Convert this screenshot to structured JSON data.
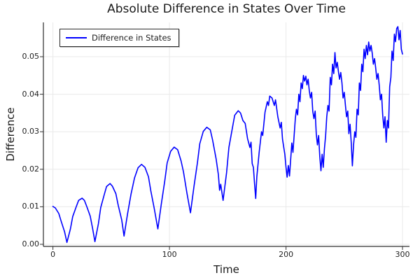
{
  "chart_data": {
    "type": "line",
    "title": "Absolute Difference in States Over Time",
    "xlabel": "Time",
    "ylabel": "Difference",
    "xlim": [
      -8.2,
      306
    ],
    "ylim": [
      -0.00056,
      0.05914
    ],
    "xticks": [
      0,
      100,
      200,
      300
    ],
    "xtick_labels": [
      "0",
      "100",
      "200",
      "300"
    ],
    "yticks": [
      0.0,
      0.01,
      0.02,
      0.03,
      0.04,
      0.05
    ],
    "ytick_labels": [
      "0.00",
      "0.01",
      "0.02",
      "0.03",
      "0.04",
      "0.05"
    ],
    "grid": true,
    "legend_position": "top-left",
    "series": [
      {
        "name": "Difference in States",
        "color": "#0000ff",
        "points": [
          [
            0,
            0.0101
          ],
          [
            2,
            0.0097
          ],
          [
            5,
            0.0082
          ],
          [
            7,
            0.0062
          ],
          [
            10,
            0.0033
          ],
          [
            12,
            0.0005
          ],
          [
            15,
            0.0041
          ],
          [
            17,
            0.0074
          ],
          [
            20,
            0.01
          ],
          [
            22,
            0.0117
          ],
          [
            25,
            0.0123
          ],
          [
            27,
            0.0117
          ],
          [
            29,
            0.0101
          ],
          [
            32,
            0.0075
          ],
          [
            34,
            0.0043
          ],
          [
            36,
            0.0007
          ],
          [
            39,
            0.0055
          ],
          [
            41,
            0.0098
          ],
          [
            44,
            0.0132
          ],
          [
            46,
            0.0154
          ],
          [
            49,
            0.0162
          ],
          [
            51,
            0.0155
          ],
          [
            54,
            0.0135
          ],
          [
            56,
            0.0104
          ],
          [
            59,
            0.0065
          ],
          [
            61,
            0.0022
          ],
          [
            64,
            0.0081
          ],
          [
            67,
            0.0134
          ],
          [
            70,
            0.0177
          ],
          [
            73,
            0.0204
          ],
          [
            76,
            0.0213
          ],
          [
            79,
            0.0205
          ],
          [
            82,
            0.018
          ],
          [
            84,
            0.0142
          ],
          [
            87,
            0.0094
          ],
          [
            90,
            0.0041
          ],
          [
            93,
            0.0108
          ],
          [
            96,
            0.0169
          ],
          [
            98,
            0.0217
          ],
          [
            101,
            0.0248
          ],
          [
            104,
            0.0259
          ],
          [
            107,
            0.0252
          ],
          [
            110,
            0.0222
          ],
          [
            112,
            0.0193
          ],
          [
            115,
            0.0136
          ],
          [
            118,
            0.0084
          ],
          [
            121,
            0.0154
          ],
          [
            124,
            0.0218
          ],
          [
            126,
            0.0268
          ],
          [
            129,
            0.0301
          ],
          [
            132,
            0.0312
          ],
          [
            135,
            0.0305
          ],
          [
            137,
            0.0278
          ],
          [
            140,
            0.0228
          ],
          [
            142,
            0.0185
          ],
          [
            143,
            0.0144
          ],
          [
            144,
            0.016
          ],
          [
            146,
            0.0117
          ],
          [
            149,
            0.0191
          ],
          [
            151,
            0.0258
          ],
          [
            154,
            0.031
          ],
          [
            156,
            0.0344
          ],
          [
            159,
            0.0356
          ],
          [
            161,
            0.035
          ],
          [
            163,
            0.033
          ],
          [
            165,
            0.0322
          ],
          [
            167,
            0.0282
          ],
          [
            169,
            0.0258
          ],
          [
            170,
            0.0272
          ],
          [
            171,
            0.0215
          ],
          [
            172,
            0.0205
          ],
          [
            173,
            0.0163
          ],
          [
            174,
            0.0122
          ],
          [
            175,
            0.018
          ],
          [
            177,
            0.0246
          ],
          [
            179,
            0.03
          ],
          [
            180,
            0.029
          ],
          [
            182,
            0.0352
          ],
          [
            184,
            0.038
          ],
          [
            185,
            0.037
          ],
          [
            186,
            0.0395
          ],
          [
            188,
            0.039
          ],
          [
            190,
            0.037
          ],
          [
            191,
            0.0385
          ],
          [
            193,
            0.034
          ],
          [
            195,
            0.031
          ],
          [
            196,
            0.0325
          ],
          [
            197,
            0.028
          ],
          [
            199,
            0.024
          ],
          [
            200,
            0.0205
          ],
          [
            201,
            0.0179
          ],
          [
            202,
            0.021
          ],
          [
            203,
            0.0182
          ],
          [
            205,
            0.027
          ],
          [
            206,
            0.0245
          ],
          [
            208,
            0.0335
          ],
          [
            209,
            0.036
          ],
          [
            210,
            0.0345
          ],
          [
            211,
            0.04
          ],
          [
            212,
            0.038
          ],
          [
            213,
            0.043
          ],
          [
            214,
            0.0415
          ],
          [
            215,
            0.045
          ],
          [
            216,
            0.0435
          ],
          [
            217,
            0.0448
          ],
          [
            218,
            0.0425
          ],
          [
            219,
            0.044
          ],
          [
            220,
            0.041
          ],
          [
            221,
            0.039
          ],
          [
            222,
            0.0405
          ],
          [
            223,
            0.0355
          ],
          [
            224,
            0.0335
          ],
          [
            225,
            0.0355
          ],
          [
            226,
            0.0295
          ],
          [
            227,
            0.0265
          ],
          [
            228,
            0.029
          ],
          [
            229,
            0.0235
          ],
          [
            230,
            0.0196
          ],
          [
            231,
            0.024
          ],
          [
            232,
            0.0205
          ],
          [
            233,
            0.0255
          ],
          [
            234,
            0.029
          ],
          [
            235,
            0.034
          ],
          [
            236,
            0.037
          ],
          [
            237,
            0.0355
          ],
          [
            238,
            0.0445
          ],
          [
            239,
            0.0425
          ],
          [
            240,
            0.048
          ],
          [
            241,
            0.0455
          ],
          [
            242,
            0.0511
          ],
          [
            243,
            0.047
          ],
          [
            244,
            0.0485
          ],
          [
            245,
            0.046
          ],
          [
            246,
            0.044
          ],
          [
            247,
            0.0458
          ],
          [
            248,
            0.043
          ],
          [
            249,
            0.039
          ],
          [
            250,
            0.0405
          ],
          [
            251,
            0.037
          ],
          [
            252,
            0.034
          ],
          [
            253,
            0.0355
          ],
          [
            254,
            0.0295
          ],
          [
            255,
            0.032
          ],
          [
            256,
            0.027
          ],
          [
            257,
            0.0209
          ],
          [
            258,
            0.0265
          ],
          [
            259,
            0.03
          ],
          [
            260,
            0.0285
          ],
          [
            261,
            0.036
          ],
          [
            262,
            0.0345
          ],
          [
            263,
            0.043
          ],
          [
            264,
            0.041
          ],
          [
            265,
            0.048
          ],
          [
            266,
            0.046
          ],
          [
            267,
            0.052
          ],
          [
            268,
            0.0495
          ],
          [
            269,
            0.053
          ],
          [
            270,
            0.0505
          ],
          [
            271,
            0.0539
          ],
          [
            272,
            0.0515
          ],
          [
            273,
            0.053
          ],
          [
            274,
            0.051
          ],
          [
            275,
            0.048
          ],
          [
            276,
            0.0495
          ],
          [
            277,
            0.047
          ],
          [
            278,
            0.044
          ],
          [
            279,
            0.0455
          ],
          [
            280,
            0.0425
          ],
          [
            281,
            0.0385
          ],
          [
            282,
            0.04
          ],
          [
            283,
            0.0345
          ],
          [
            284,
            0.031
          ],
          [
            285,
            0.034
          ],
          [
            286,
            0.0272
          ],
          [
            287,
            0.033
          ],
          [
            288,
            0.031
          ],
          [
            289,
            0.042
          ],
          [
            290,
            0.0445
          ],
          [
            291,
            0.0515
          ],
          [
            292,
            0.049
          ],
          [
            293,
            0.056
          ],
          [
            294,
            0.054
          ],
          [
            295,
            0.0575
          ],
          [
            296,
            0.058
          ],
          [
            297,
            0.0545
          ],
          [
            298,
            0.057
          ],
          [
            299,
            0.052
          ],
          [
            300,
            0.0507
          ]
        ]
      }
    ]
  }
}
